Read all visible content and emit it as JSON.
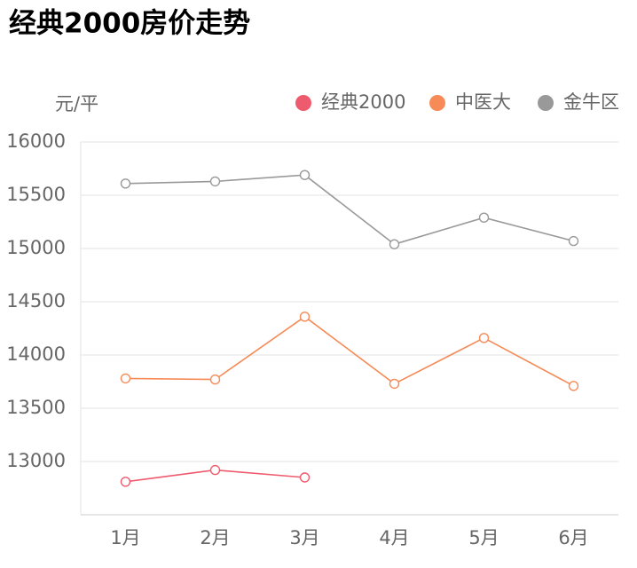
{
  "chart_data": {
    "type": "line",
    "title": "经典2000房价走势",
    "y_label": "元/平",
    "categories": [
      "1月",
      "2月",
      "3月",
      "4月",
      "5月",
      "6月"
    ],
    "series": [
      {
        "name": "经典2000",
        "color": "#ef5b6e",
        "values": [
          12810,
          12920,
          12850,
          null,
          null,
          null
        ]
      },
      {
        "name": "中医大",
        "color": "#f68b57",
        "values": [
          13780,
          13770,
          14360,
          13730,
          14160,
          13710
        ]
      },
      {
        "name": "金牛区",
        "color": "#999999",
        "values": [
          15610,
          15630,
          15690,
          15040,
          15290,
          15070
        ]
      }
    ],
    "ylim": [
      12500,
      16000
    ],
    "yticks": [
      13000,
      13500,
      14000,
      14500,
      15000,
      15500,
      16000
    ],
    "grid": true,
    "legend": "top-right"
  }
}
